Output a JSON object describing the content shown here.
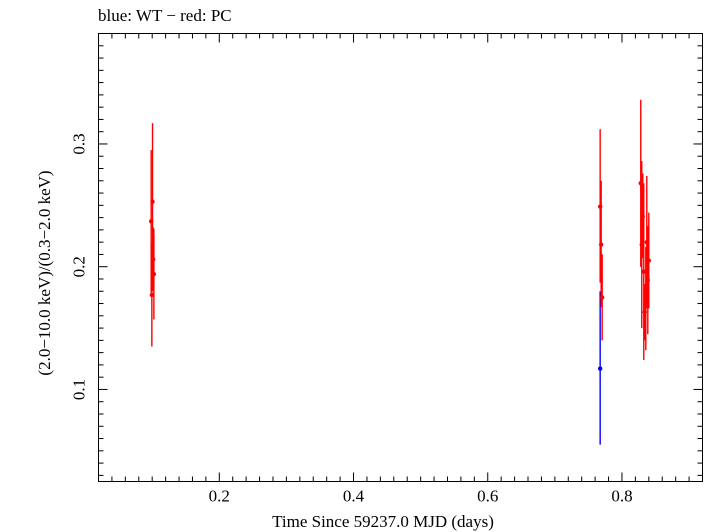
{
  "chart_data": {
    "type": "scatter",
    "title": "blue: WT − red: PC",
    "xlabel": "Time Since 59237.0 MJD (days)",
    "ylabel": "(2.0−10.0 keV)/(0.3−2.0 keV)",
    "xlim": [
      0.02,
      0.92
    ],
    "ylim": [
      0.025,
      0.39
    ],
    "xticks": [
      0.2,
      0.4,
      0.6,
      0.8
    ],
    "xtick_labels": [
      "0.2",
      "0.4",
      "0.6",
      "0.8"
    ],
    "yticks": [
      0.1,
      0.2,
      0.3
    ],
    "ytick_labels": [
      "0.1",
      "0.2",
      "0.3"
    ],
    "grid": false,
    "series": [
      {
        "color": "#0000ff",
        "points": [
          {
            "x": 0.7675,
            "y": 0.117,
            "ylo": 0.055,
            "yhi": 0.18
          }
        ]
      },
      {
        "color": "#ff0000",
        "points": [
          {
            "x": 0.0985,
            "y": 0.237,
            "ylo": 0.179,
            "yhi": 0.295
          },
          {
            "x": 0.0995,
            "y": 0.177,
            "ylo": 0.135,
            "yhi": 0.219
          },
          {
            "x": 0.1005,
            "y": 0.253,
            "ylo": 0.189,
            "yhi": 0.317
          },
          {
            "x": 0.1015,
            "y": 0.206,
            "ylo": 0.18,
            "yhi": 0.232
          },
          {
            "x": 0.1025,
            "y": 0.194,
            "ylo": 0.157,
            "yhi": 0.231
          },
          {
            "x": 0.7675,
            "y": 0.249,
            "ylo": 0.187,
            "yhi": 0.312
          },
          {
            "x": 0.769,
            "y": 0.218,
            "ylo": 0.167,
            "yhi": 0.27
          },
          {
            "x": 0.7705,
            "y": 0.175,
            "ylo": 0.14,
            "yhi": 0.21
          },
          {
            "x": 0.828,
            "y": 0.268,
            "ylo": 0.2,
            "yhi": 0.336
          },
          {
            "x": 0.8295,
            "y": 0.218,
            "ylo": 0.15,
            "yhi": 0.286
          },
          {
            "x": 0.831,
            "y": 0.241,
            "ylo": 0.207,
            "yhi": 0.276
          },
          {
            "x": 0.8325,
            "y": 0.196,
            "ylo": 0.124,
            "yhi": 0.268
          },
          {
            "x": 0.834,
            "y": 0.163,
            "ylo": 0.14,
            "yhi": 0.186
          },
          {
            "x": 0.8355,
            "y": 0.174,
            "ylo": 0.132,
            "yhi": 0.216
          },
          {
            "x": 0.837,
            "y": 0.22,
            "ylo": 0.166,
            "yhi": 0.274
          },
          {
            "x": 0.8385,
            "y": 0.189,
            "ylo": 0.145,
            "yhi": 0.233
          },
          {
            "x": 0.84,
            "y": 0.205,
            "ylo": 0.166,
            "yhi": 0.244
          }
        ]
      }
    ]
  }
}
